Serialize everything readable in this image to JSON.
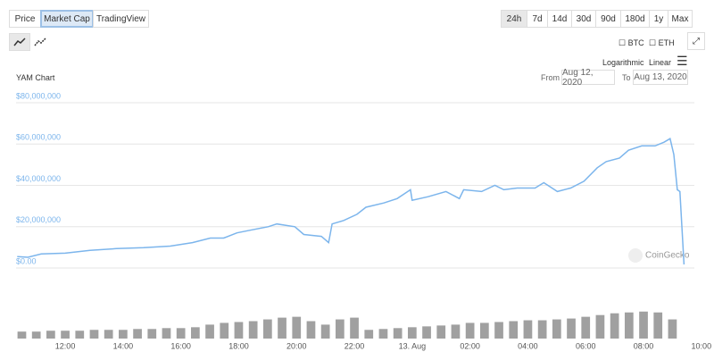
{
  "ui": {
    "view_tabs": [
      "Price",
      "Market Cap",
      "TradingView"
    ],
    "range_tabs": [
      "24h",
      "7d",
      "14d",
      "30d",
      "90d",
      "180d",
      "1y",
      "Max"
    ],
    "compare": [
      "BTC",
      "ETH"
    ],
    "scale_options": [
      "Logarithmic",
      "Linear"
    ],
    "from_label": "From",
    "from_date": "Aug 12, 2020",
    "to_label": "To",
    "to_date": "Aug 13, 2020",
    "watermark": "CoinGecko"
  },
  "chart_data": [
    {
      "type": "line",
      "title": "YAM Chart",
      "color": "#7cb5ec",
      "x": [
        10.34,
        10.71,
        11.17,
        12,
        12.86,
        13.78,
        14.71,
        15.63,
        16.4,
        17.02,
        17.48,
        17.94,
        18.4,
        19.02,
        19.32,
        19.94,
        20.25,
        20.86,
        21.11,
        21.23,
        21.63,
        22.09,
        22.4,
        23.02,
        23.48,
        23.94,
        24,
        24.55,
        25.17,
        25.63,
        25.78,
        26.4,
        26.86,
        27.17,
        27.63,
        28.25,
        28.55,
        29.02,
        29.48,
        29.94,
        30.4,
        30.71,
        31.17,
        31.48,
        31.94,
        32.4,
        32.71,
        32.92,
        33.05,
        33.17,
        33.26,
        33.4
      ],
      "values": [
        5500000,
        5200000,
        6800000,
        7200000,
        8500000,
        9400000,
        9800000,
        10600000,
        12300000,
        14500000,
        14500000,
        17000000,
        18300000,
        20000000,
        21300000,
        20000000,
        16200000,
        15300000,
        12300000,
        21300000,
        23000000,
        26000000,
        29400000,
        31500000,
        33600000,
        37900000,
        32800000,
        34500000,
        37000000,
        33600000,
        37900000,
        37000000,
        40000000,
        37900000,
        38700000,
        38700000,
        41300000,
        37000000,
        38700000,
        42000000,
        48500000,
        51500000,
        53200000,
        57000000,
        59100000,
        59100000,
        60900000,
        62600000,
        54900000,
        37900000,
        37000000,
        1700000
      ],
      "xlim": [
        10.3,
        33.45
      ],
      "xticks": [
        {
          "value": 12,
          "label": "12:00"
        },
        {
          "value": 14,
          "label": "14:00"
        },
        {
          "value": 16,
          "label": "16:00"
        },
        {
          "value": 18,
          "label": "18:00"
        },
        {
          "value": 20,
          "label": "20:00"
        },
        {
          "value": 22,
          "label": "22:00"
        },
        {
          "value": 24,
          "label": "13. Aug"
        },
        {
          "value": 26,
          "label": "02:00"
        },
        {
          "value": 28,
          "label": "04:00"
        },
        {
          "value": 30,
          "label": "06:00"
        },
        {
          "value": 32,
          "label": "08:00"
        },
        {
          "value": 34,
          "label": "10:00"
        }
      ],
      "ylim": [
        0,
        80000000
      ],
      "yticks": [
        {
          "value": 0,
          "label": "$0.00"
        },
        {
          "value": 20000000,
          "label": "$20,000,000"
        },
        {
          "value": 40000000,
          "label": "$40,000,000"
        },
        {
          "value": 60000000,
          "label": "$60,000,000"
        },
        {
          "value": 80000000,
          "label": "$80,000,000"
        }
      ],
      "grid": true
    },
    {
      "type": "bar",
      "color": "#a0a0a0",
      "x": [
        10.5,
        11,
        11.5,
        12,
        12.5,
        13,
        13.5,
        14,
        14.5,
        15,
        15.5,
        16,
        16.5,
        17,
        17.5,
        18,
        18.5,
        19,
        19.5,
        20,
        20.5,
        21,
        21.5,
        22,
        22.5,
        23,
        23.5,
        24,
        24.5,
        25,
        25.5,
        26,
        26.5,
        27,
        27.5,
        28,
        28.5,
        29,
        29.5,
        30,
        30.5,
        31,
        31.5,
        32,
        32.5,
        33
      ],
      "values": [
        8,
        8,
        9,
        9,
        9,
        10,
        10,
        10,
        11,
        11,
        12,
        12,
        13,
        16,
        18,
        19,
        20,
        22,
        24,
        25,
        20,
        16,
        22,
        24,
        10,
        11,
        12,
        13,
        14,
        15,
        16,
        18,
        18,
        19,
        20,
        21,
        21,
        22,
        23,
        25,
        27,
        29,
        30,
        31,
        30,
        22
      ],
      "xlim": [
        10.3,
        33.45
      ],
      "ylim": [
        0,
        40
      ]
    }
  ]
}
